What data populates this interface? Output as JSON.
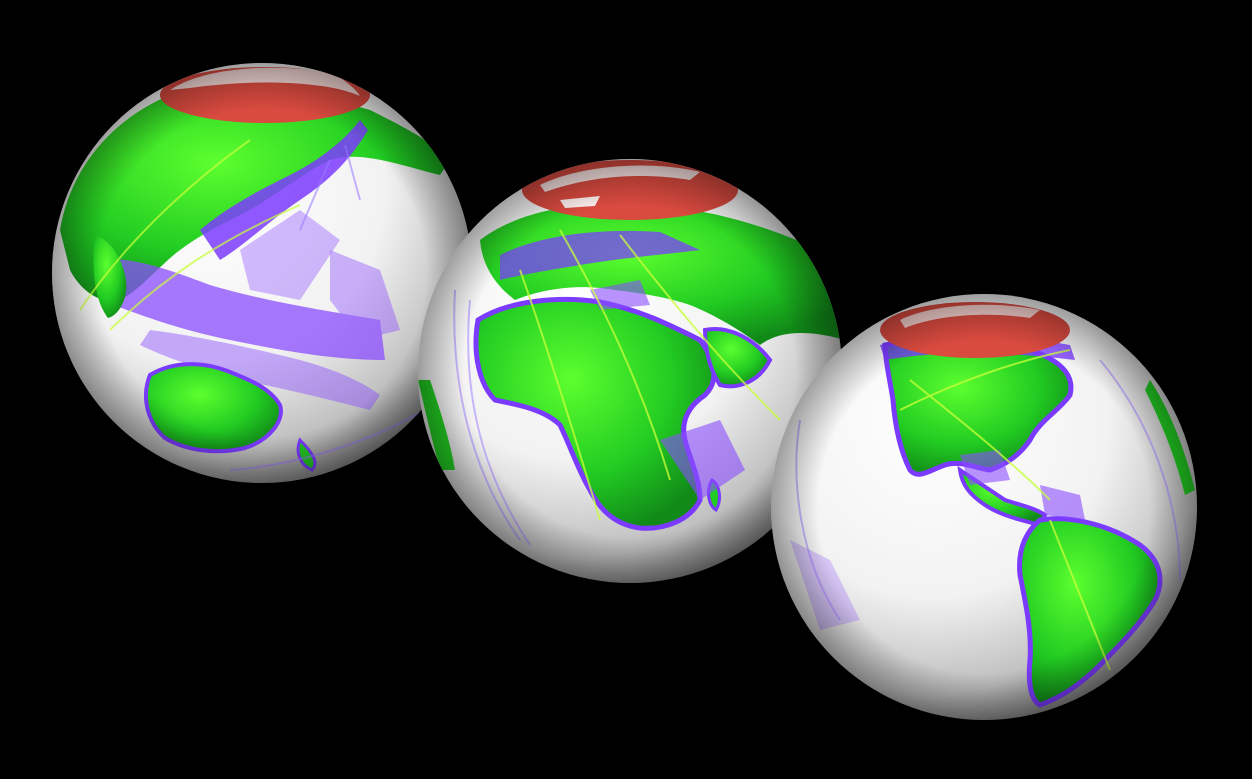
{
  "scene": {
    "background": "#000000",
    "globes": [
      {
        "view": "asia-australia",
        "polar_cap_color": "#d94a3f"
      },
      {
        "view": "africa-europe",
        "polar_cap_color": "#d94a3f"
      },
      {
        "view": "americas",
        "polar_cap_color": "#d94a3f"
      }
    ],
    "colors": {
      "ocean": "#ffffff",
      "land": "#22dd22",
      "coastline_overlay": "#7b3bff",
      "track_lines": "#c8ff3a"
    }
  }
}
